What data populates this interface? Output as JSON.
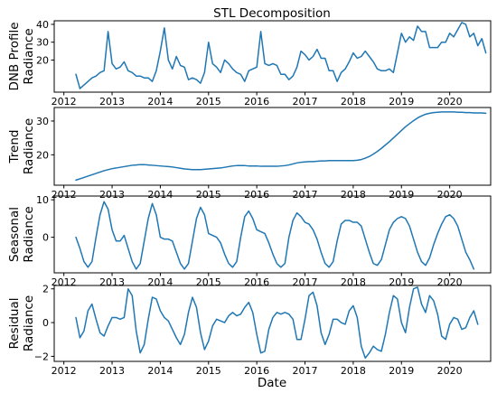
{
  "chart_data": {
    "type": "line",
    "title": "STL Decomposition",
    "xlabel": "Date",
    "line_color": "#1f77b4",
    "x_tick_labels": [
      "2012",
      "2013",
      "2014",
      "2015",
      "2016",
      "2017",
      "2018",
      "2019",
      "2020"
    ],
    "x_tick_years": [
      2012,
      2013,
      2014,
      2015,
      2016,
      2017,
      2018,
      2019,
      2020
    ],
    "xlim": [
      2011.8,
      2020.85
    ],
    "x_start": "2012-04",
    "x_step_months": 1,
    "panels": [
      {
        "name": "observed",
        "ylabel_lines": [
          "DNB Profile",
          "Radiance"
        ],
        "ylim": [
          2,
          42
        ],
        "yticks": [
          20,
          30,
          40
        ],
        "ytick_labels": [
          "20",
          "30",
          "40"
        ],
        "values": [
          12,
          4,
          6,
          8,
          10,
          11,
          13,
          14,
          36,
          18,
          15,
          16,
          19,
          14,
          13,
          11,
          11,
          10,
          10,
          8,
          14,
          25,
          38,
          20,
          15,
          22,
          17,
          16,
          9,
          10,
          9,
          7,
          13,
          30,
          18,
          16,
          13,
          20,
          18,
          15,
          13,
          12,
          8,
          14,
          15,
          16,
          36,
          18,
          17,
          18,
          17,
          12,
          12,
          9,
          11,
          16,
          25,
          23,
          20,
          22,
          26,
          21,
          21,
          14,
          14,
          8,
          13,
          15,
          19,
          24,
          21,
          22,
          25,
          22,
          19,
          15,
          14,
          14,
          15,
          13,
          24,
          35,
          30,
          33,
          31,
          39,
          36,
          36,
          27,
          27,
          27,
          30,
          30,
          35,
          33,
          37,
          41,
          40,
          33,
          35,
          28,
          32,
          24
        ]
      },
      {
        "name": "trend",
        "ylabel_lines": [
          "Trend",
          "Radiance"
        ],
        "ylim": [
          11,
          34
        ],
        "yticks": [
          20,
          30
        ],
        "ytick_labels": [
          "20",
          "30"
        ],
        "values": [
          12.5,
          12.9,
          13.3,
          13.7,
          14.1,
          14.5,
          14.9,
          15.3,
          15.6,
          15.9,
          16.1,
          16.3,
          16.5,
          16.7,
          16.9,
          17.0,
          17.1,
          17.1,
          17.0,
          16.9,
          16.8,
          16.7,
          16.6,
          16.5,
          16.4,
          16.2,
          16.0,
          15.8,
          15.7,
          15.6,
          15.6,
          15.6,
          15.7,
          15.8,
          15.9,
          16.0,
          16.1,
          16.3,
          16.5,
          16.7,
          16.8,
          16.8,
          16.8,
          16.7,
          16.7,
          16.7,
          16.6,
          16.6,
          16.6,
          16.6,
          16.6,
          16.7,
          16.8,
          17.0,
          17.3,
          17.6,
          17.8,
          17.9,
          18.0,
          18.0,
          18.1,
          18.2,
          18.2,
          18.3,
          18.3,
          18.3,
          18.3,
          18.3,
          18.3,
          18.3,
          18.4,
          18.6,
          19.0,
          19.5,
          20.2,
          21.0,
          21.9,
          22.9,
          23.9,
          25.0,
          26.1,
          27.2,
          28.3,
          29.2,
          30.1,
          30.9,
          31.5,
          32.0,
          32.3,
          32.5,
          32.6,
          32.7,
          32.7,
          32.7,
          32.7,
          32.6,
          32.6,
          32.5,
          32.5,
          32.4,
          32.4,
          32.4,
          32.3
        ]
      },
      {
        "name": "seasonal",
        "ylabel_lines": [
          "Seasonal",
          "Radiance"
        ],
        "ylim": [
          -9.5,
          11
        ],
        "yticks": [
          -10,
          0,
          10
        ],
        "ytick_labels": [
          "",
          "0",
          "10"
        ],
        "values": [
          0,
          -3,
          -6.5,
          -8,
          -6.5,
          0,
          6,
          9.5,
          7.5,
          2,
          -1,
          -1,
          0.5,
          -3,
          -6.5,
          -8.5,
          -7,
          -1,
          5,
          9,
          6,
          0,
          -0.5,
          -0.5,
          -1,
          -4,
          -7,
          -8.5,
          -7,
          -1,
          5,
          8,
          6,
          1,
          0.5,
          0,
          -1.5,
          -4.5,
          -7,
          -8,
          -6.5,
          0,
          5.5,
          7,
          5,
          2,
          1.5,
          1,
          -1.5,
          -4.5,
          -7,
          -8,
          -7,
          0,
          4.5,
          6.5,
          5.5,
          4,
          3.5,
          2,
          -0.5,
          -4,
          -7,
          -8,
          -6.5,
          -1,
          3.5,
          4.5,
          4.5,
          4,
          4,
          3,
          -0.5,
          -4,
          -7,
          -7.5,
          -6,
          -2,
          2,
          4,
          5,
          5.5,
          5,
          3,
          -0.5,
          -4,
          -6.5,
          -7.5,
          -5.5,
          -2,
          1,
          3.5,
          5.5,
          6,
          5,
          3,
          -0.5,
          -4,
          -6,
          -8.5
        ]
      },
      {
        "name": "residual",
        "ylabel_lines": [
          "Residual",
          "Radiance"
        ],
        "ylim": [
          -2.3,
          2.2
        ],
        "yticks": [
          -2,
          0,
          2
        ],
        "ytick_labels": [
          "−2",
          "0",
          "2"
        ],
        "values": [
          0.3,
          -0.9,
          -0.5,
          0.7,
          1.1,
          0.2,
          -0.6,
          -0.8,
          -0.2,
          0.3,
          0.3,
          0.2,
          0.3,
          2.0,
          1.6,
          -0.5,
          -1.8,
          -1.3,
          0.2,
          1.5,
          1.4,
          0.7,
          0.3,
          0.1,
          -0.4,
          -0.9,
          -1.3,
          -0.7,
          0.6,
          1.5,
          0.9,
          -0.6,
          -1.6,
          -1.1,
          -0.2,
          0.2,
          0.1,
          0.0,
          0.4,
          0.6,
          0.4,
          0.5,
          0.9,
          1.2,
          0.6,
          -0.7,
          -1.8,
          -1.7,
          -0.4,
          0.3,
          0.6,
          0.5,
          0.6,
          0.5,
          0.2,
          -1.0,
          -1.0,
          0.2,
          1.6,
          1.8,
          1.0,
          -0.6,
          -1.3,
          -0.7,
          0.2,
          0.2,
          0.0,
          -0.1,
          0.7,
          1.0,
          0.3,
          -1.4,
          -2.1,
          -1.8,
          -1.4,
          -1.6,
          -1.7,
          -0.7,
          0.6,
          1.6,
          1.4,
          0.0,
          -0.6,
          0.9,
          2.0,
          2.1,
          1.1,
          0.6,
          1.6,
          1.3,
          0.5,
          -0.8,
          -1.0,
          -0.1,
          0.3,
          0.2,
          -0.4,
          -0.3,
          0.3,
          0.7,
          -0.1
        ]
      }
    ]
  }
}
